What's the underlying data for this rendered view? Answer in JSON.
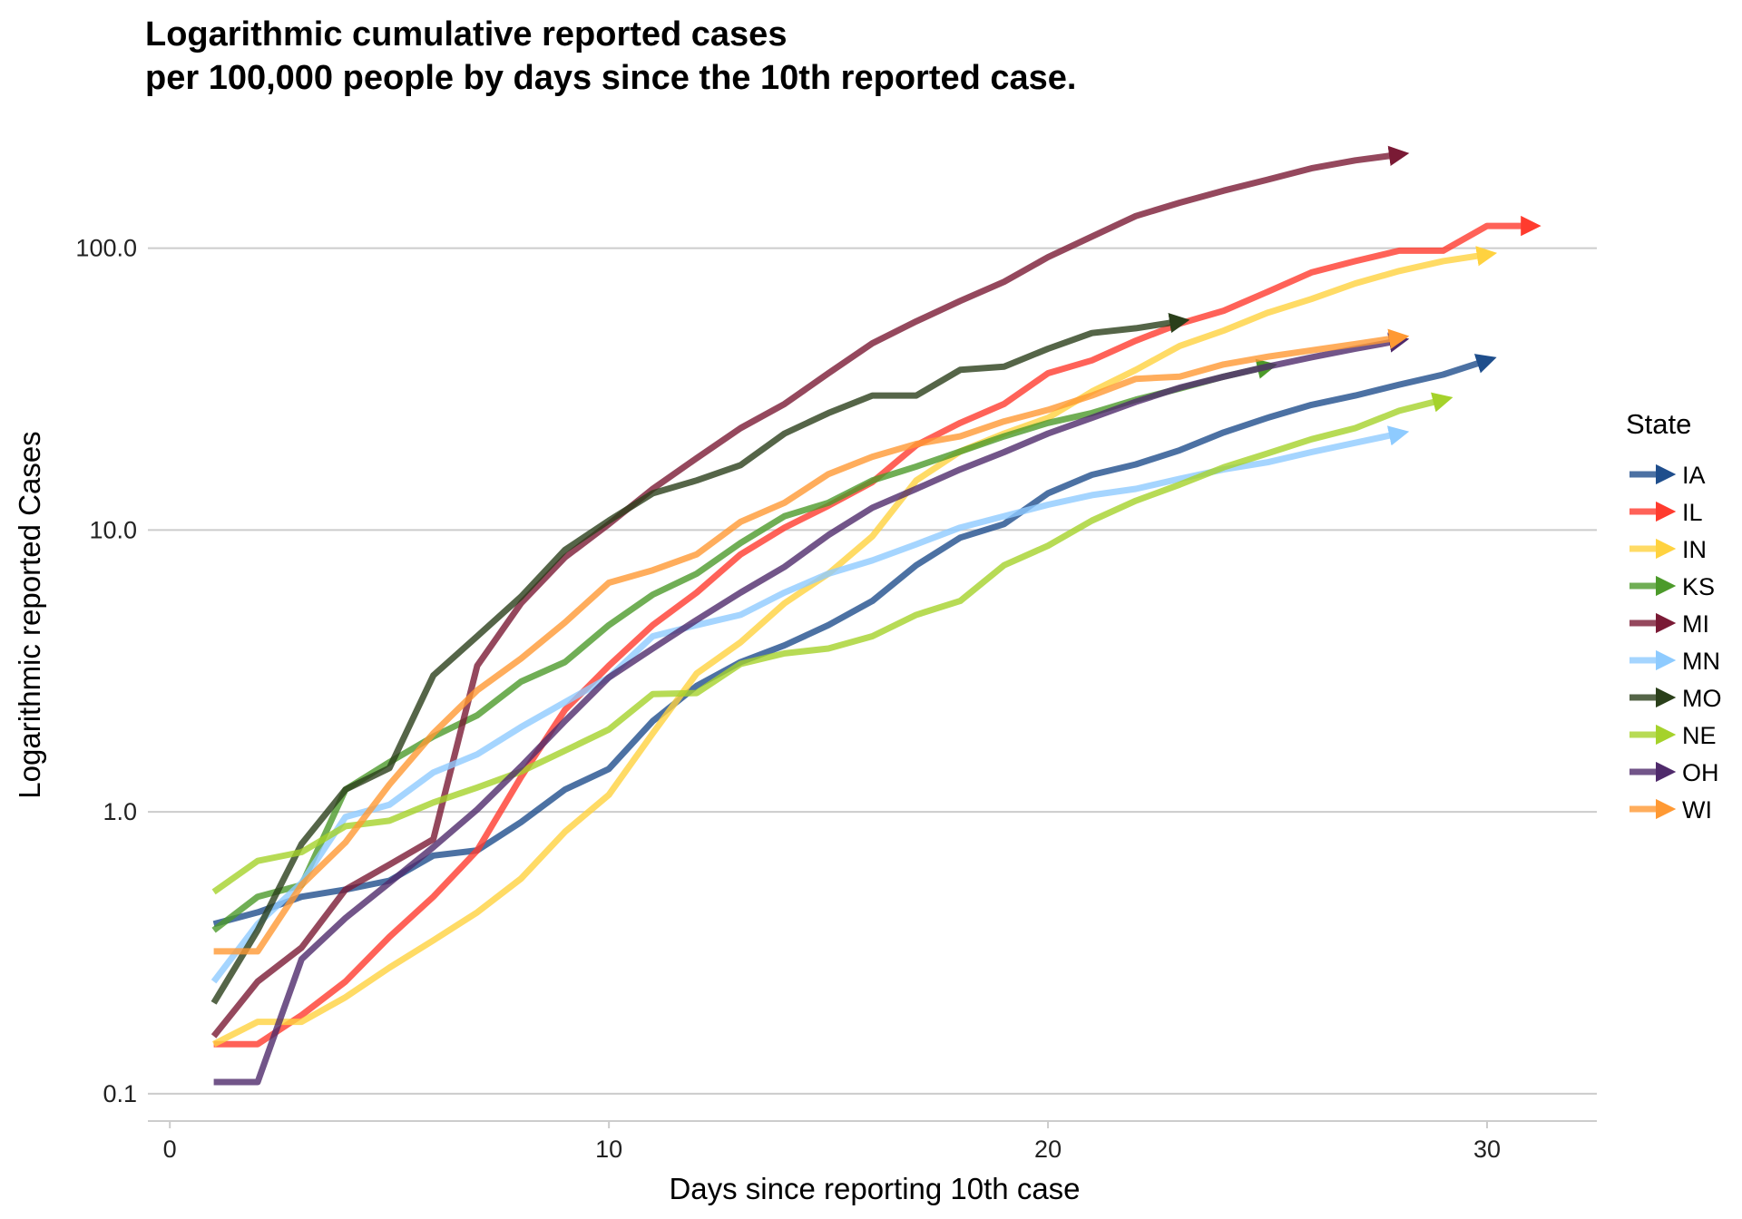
{
  "chart_data": {
    "type": "line",
    "title_lines": [
      "Logarithmic cumulative reported cases",
      "per 100,000 people by days since the 10th reported case."
    ],
    "xlabel": "Days since reporting 10th case",
    "ylabel": "Logarithmic reported Cases",
    "x_scale": "linear",
    "y_scale": "log10",
    "xlim": [
      -0.5,
      32.5
    ],
    "ylim": [
      0.08,
      250
    ],
    "x_ticks": [
      0,
      10,
      20,
      30
    ],
    "x_tick_labels": [
      "0",
      "10",
      "20",
      "30"
    ],
    "y_ticks": [
      0.1,
      1,
      10,
      100
    ],
    "y_tick_labels": [
      "0.1",
      "1.0",
      "10.0",
      "100.0"
    ],
    "grid": "horizontal major lines",
    "legend": {
      "title": "State",
      "position": "right"
    },
    "series": [
      {
        "name": "IA",
        "color": "#1f4e8c",
        "x": [
          1,
          2,
          3,
          4,
          5,
          6,
          7,
          8,
          9,
          10,
          11,
          12,
          13,
          14,
          15,
          16,
          17,
          18,
          19,
          20,
          21,
          22,
          23,
          24,
          25,
          26,
          27,
          28,
          29,
          30
        ],
        "y": [
          0.4,
          0.44,
          0.5,
          0.53,
          0.57,
          0.7,
          0.73,
          0.92,
          1.2,
          1.42,
          2.1,
          2.8,
          3.4,
          3.9,
          4.6,
          5.6,
          7.5,
          9.4,
          10.5,
          13.5,
          15.7,
          17.1,
          19.2,
          22.2,
          25,
          27.8,
          30,
          32.8,
          35.6,
          40
        ]
      },
      {
        "name": "IL",
        "color": "#ff3b2e",
        "x": [
          1,
          2,
          3,
          4,
          5,
          6,
          7,
          8,
          9,
          10,
          11,
          12,
          13,
          14,
          15,
          16,
          17,
          18,
          19,
          20,
          21,
          22,
          23,
          24,
          25,
          26,
          27,
          28,
          29,
          30,
          31
        ],
        "y": [
          0.15,
          0.15,
          0.19,
          0.25,
          0.36,
          0.5,
          0.73,
          1.33,
          2.3,
          3.3,
          4.6,
          6.0,
          8.2,
          10.2,
          12.2,
          14.8,
          20,
          24,
          28,
          36,
          40,
          47,
          54,
          60,
          70,
          82,
          90,
          98,
          98,
          120,
          120
        ]
      },
      {
        "name": "IN",
        "color": "#ffd23f",
        "x": [
          1,
          2,
          3,
          4,
          5,
          6,
          7,
          8,
          9,
          10,
          11,
          12,
          13,
          14,
          15,
          16,
          17,
          18,
          19,
          20,
          21,
          22,
          23,
          24,
          25,
          26,
          27,
          28,
          29,
          30
        ],
        "y": [
          0.15,
          0.18,
          0.18,
          0.22,
          0.28,
          0.35,
          0.44,
          0.58,
          0.85,
          1.15,
          1.9,
          3.1,
          4.0,
          5.5,
          7.0,
          9.5,
          15,
          19,
          22,
          25,
          31,
          37,
          45,
          51,
          59,
          66,
          75,
          83,
          90,
          95
        ]
      },
      {
        "name": "KS",
        "color": "#4c9a2a",
        "x": [
          1,
          2,
          3,
          4,
          5,
          6,
          7,
          8,
          9,
          10,
          11,
          12,
          13,
          14,
          15,
          16,
          17,
          18,
          19,
          20,
          21,
          22,
          23,
          24,
          25
        ],
        "y": [
          0.38,
          0.5,
          0.55,
          1.2,
          1.5,
          1.85,
          2.2,
          2.9,
          3.4,
          4.6,
          5.9,
          7.0,
          9.0,
          11.2,
          12.5,
          15,
          16.8,
          19,
          21.5,
          24,
          26,
          29,
          31.8,
          35,
          38
        ]
      },
      {
        "name": "MI",
        "color": "#7a1a35",
        "x": [
          1,
          2,
          3,
          4,
          5,
          6,
          7,
          8,
          9,
          10,
          11,
          12,
          13,
          14,
          15,
          16,
          17,
          18,
          19,
          20,
          21,
          22,
          23,
          24,
          25,
          26,
          27,
          28
        ],
        "y": [
          0.16,
          0.25,
          0.33,
          0.53,
          0.65,
          0.8,
          3.3,
          5.5,
          8.0,
          10.5,
          14,
          18,
          23,
          28,
          36,
          46,
          55,
          65,
          76,
          93,
          110,
          130,
          145,
          160,
          175,
          192,
          205,
          215
        ]
      },
      {
        "name": "MN",
        "color": "#8ecbff",
        "x": [
          1,
          2,
          3,
          4,
          5,
          6,
          7,
          8,
          9,
          10,
          11,
          12,
          13,
          14,
          15,
          16,
          17,
          18,
          19,
          20,
          21,
          22,
          23,
          24,
          25,
          26,
          27,
          28
        ],
        "y": [
          0.25,
          0.4,
          0.56,
          0.96,
          1.06,
          1.38,
          1.6,
          2.0,
          2.45,
          3.0,
          4.2,
          4.6,
          5.0,
          6.0,
          7.0,
          7.8,
          8.9,
          10.2,
          11.2,
          12.3,
          13.3,
          14.0,
          15.2,
          16.4,
          17.4,
          18.9,
          20.4,
          22
        ]
      },
      {
        "name": "MO",
        "color": "#2a3f1a",
        "x": [
          1,
          2,
          3,
          4,
          5,
          6,
          7,
          8,
          9,
          10,
          11,
          12,
          13,
          14,
          15,
          16,
          17,
          18,
          19,
          20,
          21,
          22,
          23
        ],
        "y": [
          0.21,
          0.38,
          0.77,
          1.2,
          1.43,
          3.05,
          4.2,
          5.8,
          8.5,
          10.8,
          13.5,
          15,
          17,
          22,
          26,
          30,
          30,
          37,
          38,
          44,
          50,
          52,
          55
        ]
      },
      {
        "name": "NE",
        "color": "#a5d22b",
        "x": [
          1,
          2,
          3,
          4,
          5,
          6,
          7,
          8,
          9,
          10,
          11,
          12,
          13,
          14,
          15,
          16,
          17,
          18,
          19,
          20,
          21,
          22,
          23,
          24,
          25,
          26,
          27,
          28,
          29
        ],
        "y": [
          0.52,
          0.67,
          0.72,
          0.89,
          0.93,
          1.08,
          1.22,
          1.39,
          1.65,
          1.96,
          2.62,
          2.64,
          3.35,
          3.65,
          3.8,
          4.2,
          5.0,
          5.6,
          7.5,
          8.8,
          10.8,
          12.7,
          14.5,
          16.7,
          18.7,
          21,
          23,
          26.5,
          29
        ]
      },
      {
        "name": "OH",
        "color": "#4f2a6b",
        "x": [
          1,
          2,
          3,
          4,
          5,
          6,
          7,
          8,
          9,
          10,
          11,
          12,
          13,
          14,
          15,
          16,
          17,
          18,
          19,
          20,
          21,
          22,
          23,
          24,
          25,
          26,
          27,
          28
        ],
        "y": [
          0.11,
          0.11,
          0.3,
          0.42,
          0.56,
          0.75,
          1.02,
          1.45,
          2.1,
          3.0,
          3.8,
          4.8,
          6.0,
          7.4,
          9.6,
          12.0,
          14.0,
          16.4,
          18.9,
          22,
          25,
          28.5,
          32,
          35,
          38,
          41,
          44,
          47
        ]
      },
      {
        "name": "WI",
        "color": "#ff9933",
        "x": [
          1,
          2,
          3,
          4,
          5,
          6,
          7,
          8,
          9,
          10,
          11,
          12,
          13,
          14,
          15,
          16,
          17,
          18,
          19,
          20,
          21,
          22,
          23,
          24,
          25,
          26,
          27,
          28
        ],
        "y": [
          0.32,
          0.32,
          0.55,
          0.78,
          1.25,
          1.9,
          2.7,
          3.5,
          4.7,
          6.5,
          7.2,
          8.2,
          10.7,
          12.5,
          15.8,
          18.2,
          20.2,
          21.5,
          24.3,
          26.7,
          30,
          34.4,
          35,
          38.7,
          41.2,
          43.4,
          45.7,
          48.2
        ]
      }
    ]
  }
}
